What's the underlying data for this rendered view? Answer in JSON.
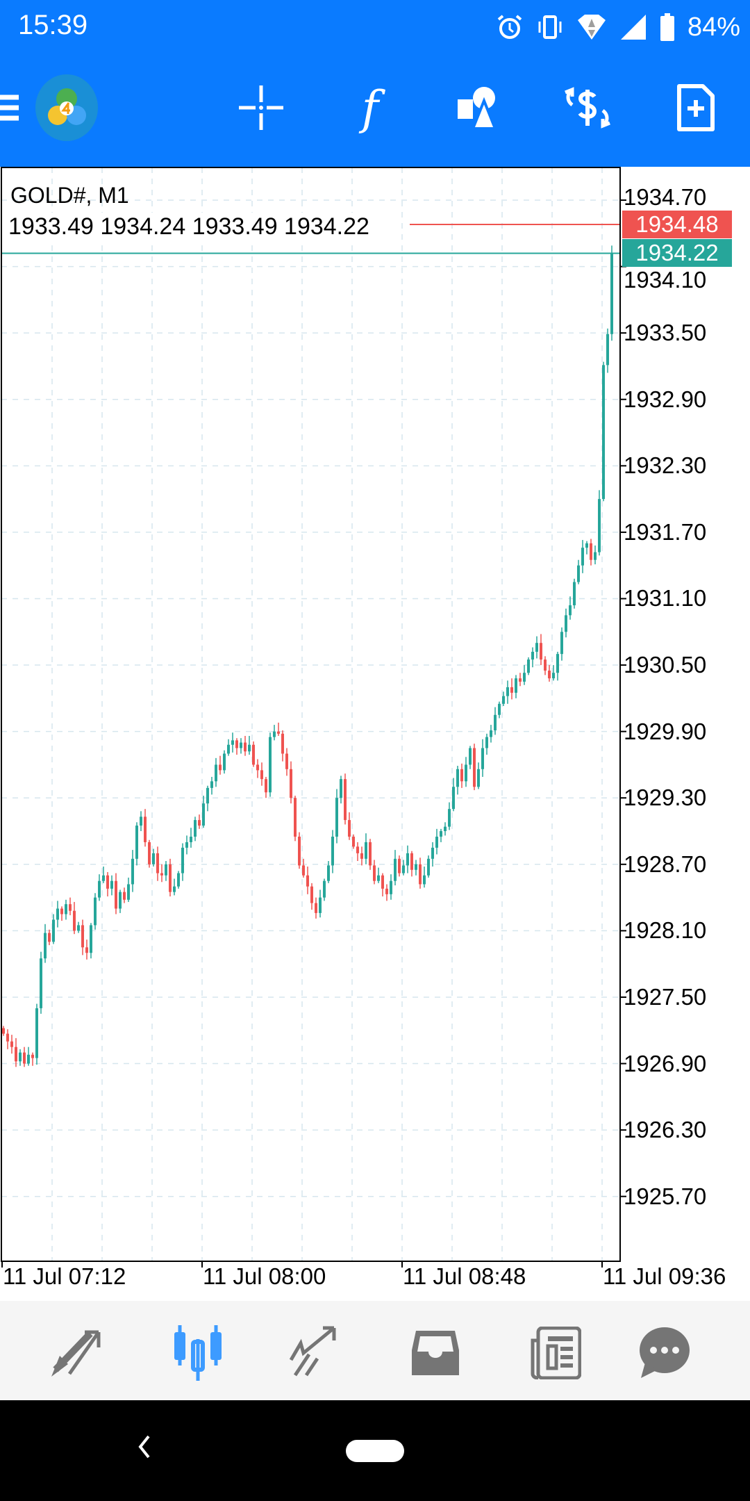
{
  "status_bar": {
    "time": "15:39",
    "battery": "84%"
  },
  "toolbar": {
    "icons": [
      "menu-icon",
      "app-logo",
      "crosshair-icon",
      "indicators-icon",
      "objects-icon",
      "symbol-change-icon",
      "new-order-icon"
    ],
    "indicator_glyph": "f"
  },
  "chart_info": {
    "symbol_timeframe": "GOLD#, M1",
    "ohlc": "1933.49 1934.24 1933.49 1934.22"
  },
  "colors": {
    "header": "#0a7bff",
    "bull": "#26a69a",
    "bear": "#ef5350",
    "active_tab": "#3d9bff",
    "inactive_tab": "#757575"
  },
  "chart_data": {
    "type": "candlestick",
    "symbol": "GOLD#",
    "timeframe": "M1",
    "start_time": "11 Jul 07:12",
    "x_tick_labels": [
      "11 Jul 07:12",
      "11 Jul 08:00",
      "11 Jul 08:48",
      "11 Jul 09:36"
    ],
    "y_tick_labels": [
      "1934.70",
      "1934.10",
      "1933.50",
      "1932.90",
      "1932.30",
      "1931.70",
      "1931.10",
      "1930.50",
      "1929.90",
      "1929.30",
      "1928.70",
      "1928.10",
      "1927.50",
      "1926.90",
      "1926.30",
      "1925.70"
    ],
    "ylim": [
      1925.2,
      1934.95
    ],
    "ask": "1934.48",
    "bid": "1934.22",
    "grid": true,
    "closes": [
      1927.17,
      1927.1,
      1927.05,
      1926.92,
      1927.0,
      1926.9,
      1926.98,
      1926.95,
      1927.4,
      1927.85,
      1928.08,
      1928.0,
      1928.2,
      1928.3,
      1928.25,
      1928.34,
      1928.28,
      1928.1,
      1928.15,
      1927.95,
      1927.9,
      1928.15,
      1928.4,
      1928.55,
      1928.6,
      1928.48,
      1928.55,
      1928.3,
      1928.45,
      1928.38,
      1928.52,
      1928.75,
      1929.05,
      1929.13,
      1928.9,
      1928.7,
      1928.8,
      1928.62,
      1928.6,
      1928.7,
      1928.45,
      1928.5,
      1928.62,
      1928.85,
      1928.9,
      1928.95,
      1929.1,
      1929.05,
      1929.25,
      1929.39,
      1929.45,
      1929.6,
      1929.55,
      1929.7,
      1929.78,
      1929.82,
      1929.75,
      1929.8,
      1929.72,
      1929.78,
      1929.6,
      1929.55,
      1929.47,
      1929.35,
      1929.85,
      1929.9,
      1929.88,
      1929.7,
      1929.56,
      1929.3,
      1928.95,
      1928.69,
      1928.6,
      1928.5,
      1928.35,
      1928.26,
      1928.4,
      1928.55,
      1928.69,
      1928.95,
      1929.3,
      1929.47,
      1929.1,
      1928.95,
      1928.86,
      1928.8,
      1928.75,
      1928.9,
      1928.69,
      1928.55,
      1928.6,
      1928.48,
      1928.43,
      1928.55,
      1928.75,
      1928.62,
      1928.69,
      1928.8,
      1928.65,
      1928.7,
      1928.52,
      1928.6,
      1928.75,
      1928.85,
      1928.95,
      1929.0,
      1929.04,
      1929.2,
      1929.4,
      1929.56,
      1929.45,
      1929.6,
      1929.75,
      1929.4,
      1929.56,
      1929.75,
      1929.85,
      1929.91,
      1930.05,
      1930.15,
      1930.22,
      1930.3,
      1930.25,
      1930.38,
      1930.35,
      1930.43,
      1930.55,
      1930.62,
      1930.7,
      1930.55,
      1930.45,
      1930.38,
      1930.43,
      1930.6,
      1930.8,
      1930.95,
      1931.04,
      1931.25,
      1931.4,
      1931.56,
      1931.6,
      1931.45,
      1931.52,
      1932.0,
      1933.21,
      1933.49,
      1934.22
    ]
  },
  "bottom_nav": {
    "items": [
      "quotes-icon",
      "chart-icon",
      "trade-icon",
      "history-icon",
      "news-icon",
      "messages-icon"
    ],
    "active": 1
  }
}
